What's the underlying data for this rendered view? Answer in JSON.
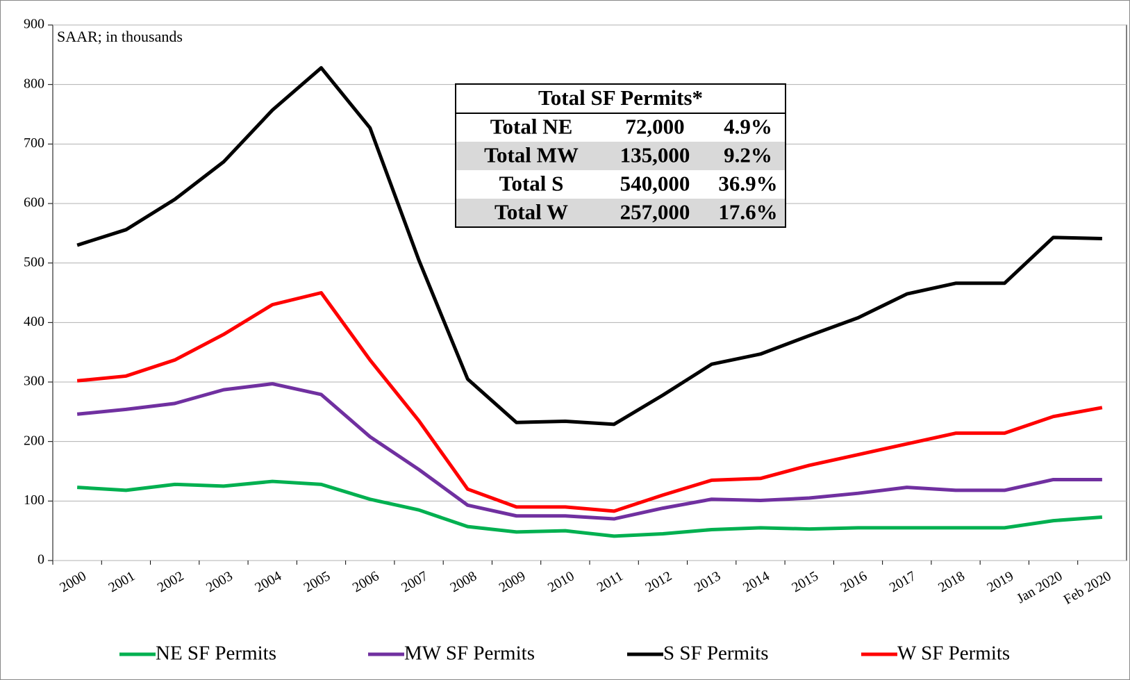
{
  "chart_data": {
    "type": "line",
    "annotation": "SAAR; in thousands",
    "categories": [
      "2000",
      "2001",
      "2002",
      "2003",
      "2004",
      "2005",
      "2006",
      "2007",
      "2008",
      "2009",
      "2010",
      "2011",
      "2012",
      "2013",
      "2014",
      "2015",
      "2016",
      "2017",
      "2018",
      "2019",
      "Jan 2020",
      "Feb 2020"
    ],
    "ylim": [
      0,
      900
    ],
    "yticks": [
      0,
      100,
      200,
      300,
      400,
      500,
      600,
      700,
      800,
      900
    ],
    "grid": true,
    "series": [
      {
        "name": "NE SF Permits",
        "color": "#00b050",
        "values": [
          123,
          118,
          128,
          125,
          133,
          128,
          103,
          85,
          57,
          48,
          50,
          41,
          45,
          52,
          55,
          53,
          55,
          55,
          55,
          55,
          67,
          73
        ]
      },
      {
        "name": "MW SF Permits",
        "color": "#7030a0",
        "values": [
          246,
          254,
          264,
          287,
          297,
          279,
          208,
          153,
          93,
          75,
          75,
          70,
          88,
          103,
          101,
          105,
          113,
          123,
          118,
          118,
          136,
          136
        ]
      },
      {
        "name": "S SF Permits",
        "color": "#000000",
        "values": [
          530,
          556,
          607,
          670,
          757,
          828,
          727,
          505,
          305,
          232,
          234,
          229,
          278,
          330,
          347,
          378,
          408,
          448,
          466,
          466,
          543,
          541
        ]
      },
      {
        "name": "W SF Permits",
        "color": "#ff0000",
        "values": [
          302,
          310,
          337,
          380,
          430,
          450,
          337,
          235,
          120,
          90,
          90,
          83,
          110,
          135,
          138,
          160,
          178,
          196,
          214,
          214,
          242,
          257
        ]
      }
    ],
    "table": {
      "title": "Total SF Permits*",
      "rows": [
        [
          "Total NE",
          "72,000",
          "4.9%"
        ],
        [
          "Total MW",
          "135,000",
          "9.2%"
        ],
        [
          "Total S",
          "540,000",
          "36.9%"
        ],
        [
          "Total W",
          "257,000",
          "17.6%"
        ]
      ]
    }
  }
}
